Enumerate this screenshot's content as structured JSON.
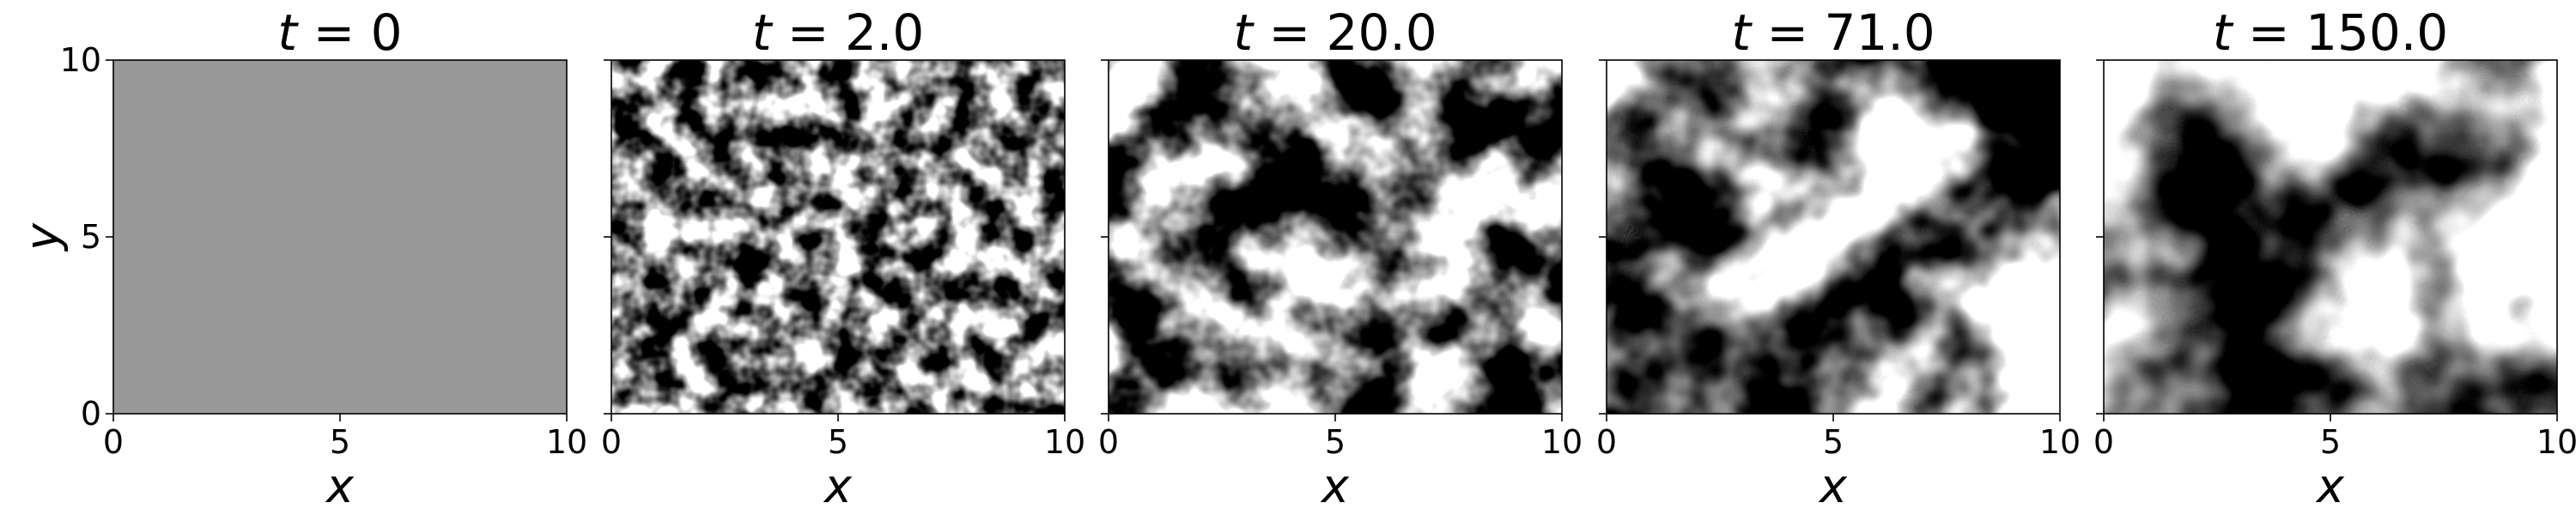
{
  "chart_data": {
    "type": "heatmap",
    "colormap": "grayscale",
    "xlabel": "x",
    "ylabel": "y",
    "xlim": [
      0,
      10
    ],
    "ylim": [
      0,
      10
    ],
    "xticks": [
      "0",
      "5",
      "10"
    ],
    "yticks": [
      "0",
      "5",
      "10"
    ],
    "panels": [
      {
        "title_var": "t",
        "title_value": "0",
        "field": "uniform",
        "gray_level": 0.6
      },
      {
        "title_var": "t",
        "title_value": "2.0",
        "field": "fine-grained random texture"
      },
      {
        "title_var": "t",
        "title_value": "20.0",
        "field": "coarsening light and dark domains"
      },
      {
        "title_var": "t",
        "title_value": "71.0",
        "field": "larger light and dark domains"
      },
      {
        "title_var": "t",
        "title_value": "150.0",
        "field": "large domains"
      }
    ]
  }
}
